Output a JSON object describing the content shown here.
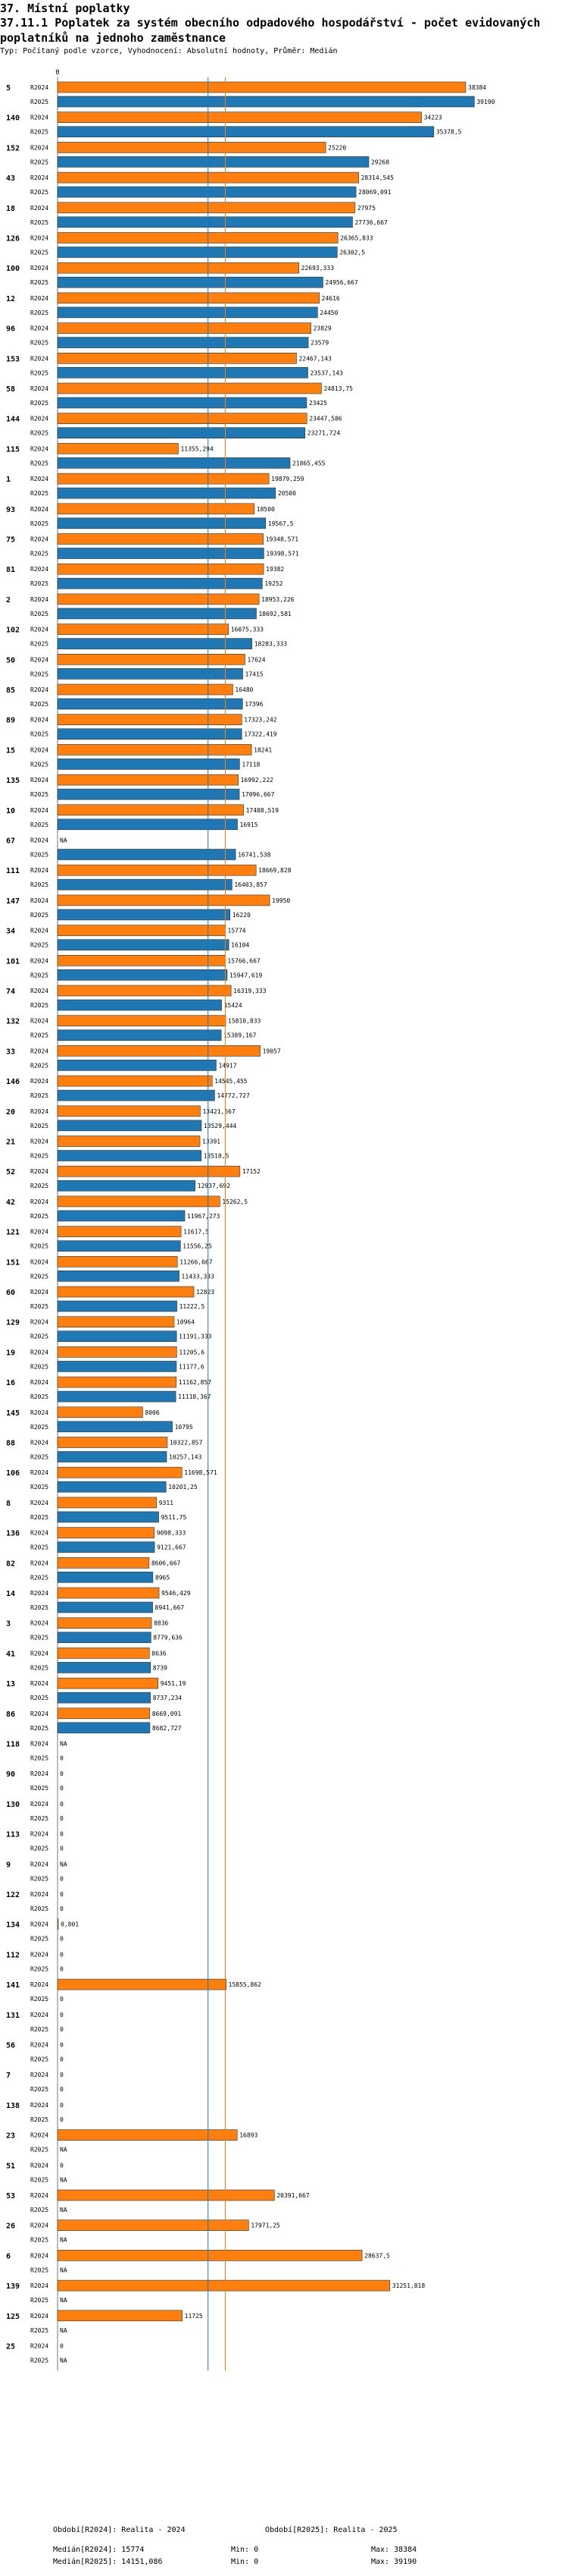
{
  "page": {
    "heading": "37. Místní poplatky",
    "title": "37.11.1 Poplatek za systém obecního odpadového hospodářství - počet evidovaných poplatníků na jednoho zaměstnance",
    "subtitle": "Typ: Počítaný podle vzorce, Vyhodnocení: Absolutní hodnoty, Průměr: Medián"
  },
  "chart_data": {
    "type": "bar",
    "orientation": "horizontal",
    "title": "37.11.1 Poplatek za systém obecního odpadového hospodářství - počet evidovaných poplatníků na jednoho zaměstnance",
    "xlim": [
      0,
      38384
    ],
    "x_tick_label": "0",
    "series": [
      {
        "name": "R2024",
        "color": "#ff7f0e"
      },
      {
        "name": "R2025",
        "color": "#1f77b4"
      }
    ],
    "medians": {
      "R2024": 15774,
      "R2025": 14151.086
    },
    "groups": [
      {
        "id": "5",
        "r2024": 38384,
        "l2024": "38384",
        "r2025": 39190,
        "l2025": "39190"
      },
      {
        "id": "140",
        "r2024": 34223,
        "l2024": "34223",
        "r2025": 35378.5,
        "l2025": "35378,5"
      },
      {
        "id": "152",
        "r2024": 25220,
        "l2024": "25220",
        "r2025": 29268,
        "l2025": "29268"
      },
      {
        "id": "43",
        "r2024": 28314.545,
        "l2024": "28314,545",
        "r2025": 28069.091,
        "l2025": "28069,091"
      },
      {
        "id": "18",
        "r2024": 27975,
        "l2024": "27975",
        "r2025": 27736.667,
        "l2025": "27736,667"
      },
      {
        "id": "126",
        "r2024": 26365.833,
        "l2024": "26365,833",
        "r2025": 26302.5,
        "l2025": "26302,5"
      },
      {
        "id": "100",
        "r2024": 22693.333,
        "l2024": "22693,333",
        "r2025": 24956.667,
        "l2025": "24956,667"
      },
      {
        "id": "12",
        "r2024": 24616,
        "l2024": "24616",
        "r2025": 24450,
        "l2025": "24450"
      },
      {
        "id": "96",
        "r2024": 23829,
        "l2024": "23829",
        "r2025": 23579,
        "l2025": "23579"
      },
      {
        "id": "153",
        "r2024": 22467.143,
        "l2024": "22467,143",
        "r2025": 23537.143,
        "l2025": "23537,143"
      },
      {
        "id": "58",
        "r2024": 24813.75,
        "l2024": "24813,75",
        "r2025": 23425,
        "l2025": "23425"
      },
      {
        "id": "144",
        "r2024": 23447.586,
        "l2024": "23447,586",
        "r2025": 23271.724,
        "l2025": "23271,724"
      },
      {
        "id": "115",
        "r2024": 11355.294,
        "l2024": "11355,294",
        "r2025": 21865.455,
        "l2025": "21865,455"
      },
      {
        "id": "1",
        "r2024": 19879.259,
        "l2024": "19879,259",
        "r2025": 20500,
        "l2025": "20500"
      },
      {
        "id": "93",
        "r2024": 18500,
        "l2024": "18500",
        "r2025": 19567.5,
        "l2025": "19567,5"
      },
      {
        "id": "75",
        "r2024": 19348.571,
        "l2024": "19348,571",
        "r2025": 19398.571,
        "l2025": "19398,571"
      },
      {
        "id": "81",
        "r2024": 19382,
        "l2024": "19382",
        "r2025": 19252,
        "l2025": "19252"
      },
      {
        "id": "2",
        "r2024": 18953.226,
        "l2024": "18953,226",
        "r2025": 18692.581,
        "l2025": "18692,581"
      },
      {
        "id": "102",
        "r2024": 16075.333,
        "l2024": "16075,333",
        "r2025": 18283.333,
        "l2025": "18283,333"
      },
      {
        "id": "50",
        "r2024": 17624,
        "l2024": "17624",
        "r2025": 17415,
        "l2025": "17415"
      },
      {
        "id": "85",
        "r2024": 16480,
        "l2024": "16480",
        "r2025": 17396,
        "l2025": "17396"
      },
      {
        "id": "89",
        "r2024": 17323.242,
        "l2024": "17323,242",
        "r2025": 17322.419,
        "l2025": "17322,419"
      },
      {
        "id": "15",
        "r2024": 18241,
        "l2024": "18241",
        "r2025": 17118,
        "l2025": "17118"
      },
      {
        "id": "135",
        "r2024": 16992.222,
        "l2024": "16992,222",
        "r2025": 17096.667,
        "l2025": "17096,667"
      },
      {
        "id": "10",
        "r2024": 17488.519,
        "l2024": "17488,519",
        "r2025": 16915,
        "l2025": "16915"
      },
      {
        "id": "67",
        "r2024": null,
        "l2024": "NA",
        "r2025": 16741.538,
        "l2025": "16741,538"
      },
      {
        "id": "111",
        "r2024": 18669.828,
        "l2024": "18669,828",
        "r2025": 16403.857,
        "l2025": "16403,857"
      },
      {
        "id": "147",
        "r2024": 19950,
        "l2024": "19950",
        "r2025": 16220,
        "l2025": "16220"
      },
      {
        "id": "34",
        "r2024": 15774,
        "l2024": "15774",
        "r2025": 16104,
        "l2025": "16104"
      },
      {
        "id": "101",
        "r2024": 15766.667,
        "l2024": "15766,667",
        "r2025": 15947.619,
        "l2025": "15947,619"
      },
      {
        "id": "74",
        "r2024": 16319.333,
        "l2024": "16319,333",
        "r2025": 15424,
        "l2025": "15424"
      },
      {
        "id": "132",
        "r2024": 15810.833,
        "l2024": "15810,833",
        "r2025": 15389.167,
        "l2025": "15389,167"
      },
      {
        "id": "33",
        "r2024": 19057,
        "l2024": "19057",
        "r2025": 14917,
        "l2025": "14917"
      },
      {
        "id": "146",
        "r2024": 14545.455,
        "l2024": "14545,455",
        "r2025": 14772.727,
        "l2025": "14772,727"
      },
      {
        "id": "20",
        "r2024": 13421.667,
        "l2024": "13421,667",
        "r2025": 13529.444,
        "l2025": "13529,444"
      },
      {
        "id": "21",
        "r2024": 13391,
        "l2024": "13391",
        "r2025": 13510.5,
        "l2025": "13510,5"
      },
      {
        "id": "52",
        "r2024": 17152,
        "l2024": "17152",
        "r2025": 12937.692,
        "l2025": "12937,692"
      },
      {
        "id": "42",
        "r2024": 15262.5,
        "l2024": "15262,5",
        "r2025": 11967.273,
        "l2025": "11967,273"
      },
      {
        "id": "121",
        "r2024": 11617.5,
        "l2024": "11617,5",
        "r2025": 11556.25,
        "l2025": "11556,25"
      },
      {
        "id": "151",
        "r2024": 11266.667,
        "l2024": "11266,667",
        "r2025": 11433.333,
        "l2025": "11433,333"
      },
      {
        "id": "60",
        "r2024": 12823,
        "l2024": "12823",
        "r2025": 11222.5,
        "l2025": "11222,5"
      },
      {
        "id": "129",
        "r2024": 10964,
        "l2024": "10964",
        "r2025": 11191.333,
        "l2025": "11191,333"
      },
      {
        "id": "19",
        "r2024": 11205.6,
        "l2024": "11205,6",
        "r2025": 11177.6,
        "l2025": "11177,6"
      },
      {
        "id": "16",
        "r2024": 11162.857,
        "l2024": "11162,857",
        "r2025": 11118.367,
        "l2025": "11118,367"
      },
      {
        "id": "145",
        "r2024": 8006,
        "l2024": "8006",
        "r2025": 10795,
        "l2025": "10795"
      },
      {
        "id": "88",
        "r2024": 10322.857,
        "l2024": "10322,857",
        "r2025": 10257.143,
        "l2025": "10257,143"
      },
      {
        "id": "106",
        "r2024": 11698.571,
        "l2024": "11698,571",
        "r2025": 10201.25,
        "l2025": "10201,25"
      },
      {
        "id": "8",
        "r2024": 9311,
        "l2024": "9311",
        "r2025": 9511.75,
        "l2025": "9511,75"
      },
      {
        "id": "136",
        "r2024": 9098.333,
        "l2024": "9098,333",
        "r2025": 9121.667,
        "l2025": "9121,667"
      },
      {
        "id": "82",
        "r2024": 8606.667,
        "l2024": "8606,667",
        "r2025": 8965,
        "l2025": "8965"
      },
      {
        "id": "14",
        "r2024": 9546.429,
        "l2024": "9546,429",
        "r2025": 8941.667,
        "l2025": "8941,667"
      },
      {
        "id": "3",
        "r2024": 8836,
        "l2024": "8836",
        "r2025": 8779.636,
        "l2025": "8779,636"
      },
      {
        "id": "41",
        "r2024": 8636,
        "l2024": "8636",
        "r2025": 8739,
        "l2025": "8739"
      },
      {
        "id": "13",
        "r2024": 9451.19,
        "l2024": "9451,19",
        "r2025": 8737.234,
        "l2025": "8737,234"
      },
      {
        "id": "86",
        "r2024": 8669.091,
        "l2024": "8669,091",
        "r2025": 8682.727,
        "l2025": "8682,727"
      },
      {
        "id": "118",
        "r2024": null,
        "l2024": "NA",
        "r2025": 0,
        "l2025": "0"
      },
      {
        "id": "90",
        "r2024": 0,
        "l2024": "0",
        "r2025": 0,
        "l2025": "0"
      },
      {
        "id": "130",
        "r2024": 0,
        "l2024": "0",
        "r2025": 0,
        "l2025": "0"
      },
      {
        "id": "113",
        "r2024": 0,
        "l2024": "0",
        "r2025": 0,
        "l2025": "0"
      },
      {
        "id": "9",
        "r2024": null,
        "l2024": "NA",
        "r2025": 0,
        "l2025": "0"
      },
      {
        "id": "122",
        "r2024": 0,
        "l2024": "0",
        "r2025": 0,
        "l2025": "0"
      },
      {
        "id": "134",
        "r2024": 0.801,
        "l2024": "0,801",
        "r2025": 0,
        "l2025": "0"
      },
      {
        "id": "112",
        "r2024": 0,
        "l2024": "0",
        "r2025": 0,
        "l2025": "0"
      },
      {
        "id": "141",
        "r2024": 15855.862,
        "l2024": "15855,862",
        "r2025": 0,
        "l2025": "0"
      },
      {
        "id": "131",
        "r2024": 0,
        "l2024": "0",
        "r2025": 0,
        "l2025": "0"
      },
      {
        "id": "56",
        "r2024": 0,
        "l2024": "0",
        "r2025": 0,
        "l2025": "0"
      },
      {
        "id": "7",
        "r2024": 0,
        "l2024": "0",
        "r2025": 0,
        "l2025": "0"
      },
      {
        "id": "138",
        "r2024": 0,
        "l2024": "0",
        "r2025": 0,
        "l2025": "0"
      },
      {
        "id": "23",
        "r2024": 16893,
        "l2024": "16893",
        "r2025": null,
        "l2025": "NA"
      },
      {
        "id": "51",
        "r2024": 0,
        "l2024": "0",
        "r2025": null,
        "l2025": "NA"
      },
      {
        "id": "53",
        "r2024": 20391.667,
        "l2024": "20391,667",
        "r2025": null,
        "l2025": "NA"
      },
      {
        "id": "26",
        "r2024": 17971.25,
        "l2024": "17971,25",
        "r2025": null,
        "l2025": "NA"
      },
      {
        "id": "6",
        "r2024": 28637.5,
        "l2024": "28637,5",
        "r2025": null,
        "l2025": "NA"
      },
      {
        "id": "139",
        "r2024": 31251.818,
        "l2024": "31251,818",
        "r2025": null,
        "l2025": "NA"
      },
      {
        "id": "125",
        "r2024": 11725,
        "l2024": "11725",
        "r2025": null,
        "l2025": "NA"
      },
      {
        "id": "25",
        "r2024": 0,
        "l2024": "0",
        "r2025": null,
        "l2025": "NA"
      }
    ]
  },
  "footer": {
    "period_2024": "Období[R2024]: Realita - 2024",
    "period_2025": "Období[R2025]: Realita - 2025",
    "median_2024": "Medián[R2024]: 15774",
    "median_2025": "Medián[R2025]: 14151,086",
    "min_2024": "Min: 0",
    "min_2025": "Min: 0",
    "max_2024": "Max: 38384",
    "max_2025": "Max: 39190"
  }
}
